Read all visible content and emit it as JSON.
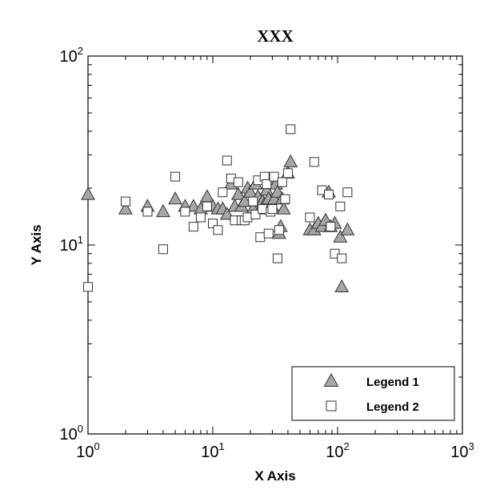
{
  "chart_data": {
    "type": "scatter",
    "title": "XXX",
    "xlabel": "X Axis",
    "ylabel": "Y Axis",
    "xscale": "log",
    "yscale": "log",
    "xlim": [
      1,
      1000
    ],
    "ylim": [
      1,
      100
    ],
    "x_ticks": [
      {
        "base": "10",
        "exp": "0"
      },
      {
        "base": "10",
        "exp": "1"
      },
      {
        "base": "10",
        "exp": "2"
      },
      {
        "base": "10",
        "exp": "3"
      }
    ],
    "y_ticks": [
      {
        "base": "10",
        "exp": "0"
      },
      {
        "base": "10",
        "exp": "1"
      },
      {
        "base": "10",
        "exp": "2"
      }
    ],
    "grid": false,
    "legend_position": "bottom-right",
    "series": [
      {
        "name": "Legend 1",
        "marker": "triangle",
        "color": "#a6a6a6",
        "points": [
          [
            1.0,
            18.5
          ],
          [
            2.0,
            15.5
          ],
          [
            3.0,
            16.0
          ],
          [
            4.0,
            15.0
          ],
          [
            5.0,
            17.5
          ],
          [
            6.0,
            16.0
          ],
          [
            7.0,
            16.0
          ],
          [
            8.0,
            15.5
          ],
          [
            9.0,
            18.0
          ],
          [
            10.0,
            16.0
          ],
          [
            11.0,
            15.5
          ],
          [
            12.0,
            15.5
          ],
          [
            13.0,
            14.5
          ],
          [
            14.0,
            21.0
          ],
          [
            15.0,
            16.0
          ],
          [
            16.0,
            18.5
          ],
          [
            17.0,
            16.0
          ],
          [
            18.0,
            17.0
          ],
          [
            19.0,
            20.0
          ],
          [
            20.0,
            19.0
          ],
          [
            21.0,
            15.5
          ],
          [
            22.0,
            21.0
          ],
          [
            23.0,
            18.0
          ],
          [
            24.0,
            15.5
          ],
          [
            25.0,
            17.0
          ],
          [
            26.0,
            16.5
          ],
          [
            27.0,
            19.5
          ],
          [
            28.0,
            17.5
          ],
          [
            29.0,
            22.0
          ],
          [
            30.0,
            16.0
          ],
          [
            31.0,
            17.5
          ],
          [
            32.0,
            21.0
          ],
          [
            33.0,
            19.0
          ],
          [
            34.0,
            11.5
          ],
          [
            35.0,
            12.5
          ],
          [
            36.0,
            17.5
          ],
          [
            37.0,
            15.5
          ],
          [
            40.0,
            24.0
          ],
          [
            42.0,
            27.5
          ],
          [
            60.0,
            12.0
          ],
          [
            65.0,
            12.0
          ],
          [
            70.0,
            13.0
          ],
          [
            75.0,
            12.5
          ],
          [
            80.0,
            13.5
          ],
          [
            85.0,
            19.0
          ],
          [
            88.0,
            12.5
          ],
          [
            95.0,
            13.0
          ],
          [
            105.0,
            11.0
          ],
          [
            108.0,
            6.0
          ],
          [
            120.0,
            12.0
          ]
        ]
      },
      {
        "name": "Legend 2",
        "marker": "square",
        "color": "#ffffff",
        "points": [
          [
            1.0,
            6.0
          ],
          [
            2.0,
            17.0
          ],
          [
            3.0,
            15.0
          ],
          [
            4.0,
            9.5
          ],
          [
            5.0,
            23.0
          ],
          [
            6.0,
            15.0
          ],
          [
            7.0,
            12.5
          ],
          [
            8.0,
            14.0
          ],
          [
            9.0,
            16.0
          ],
          [
            10.0,
            13.0
          ],
          [
            11.0,
            12.0
          ],
          [
            12.0,
            19.0
          ],
          [
            13.0,
            28.0
          ],
          [
            14.0,
            22.5
          ],
          [
            15.0,
            13.5
          ],
          [
            16.0,
            21.5
          ],
          [
            17.0,
            13.5
          ],
          [
            18.0,
            13.5
          ],
          [
            19.0,
            14.0
          ],
          [
            21.0,
            17.0
          ],
          [
            22.0,
            14.5
          ],
          [
            23.0,
            22.0
          ],
          [
            24.0,
            11.0
          ],
          [
            25.0,
            15.5
          ],
          [
            26.0,
            23.0
          ],
          [
            27.0,
            21.0
          ],
          [
            28.0,
            11.5
          ],
          [
            29.0,
            15.0
          ],
          [
            30.0,
            15.5
          ],
          [
            31.0,
            23.0
          ],
          [
            33.0,
            8.5
          ],
          [
            34.0,
            12.0
          ],
          [
            36.0,
            21.5
          ],
          [
            38.0,
            17.5
          ],
          [
            40.0,
            24.0
          ],
          [
            42.0,
            41.0
          ],
          [
            60.0,
            14.0
          ],
          [
            65.0,
            27.5
          ],
          [
            75.0,
            19.5
          ],
          [
            85.0,
            18.5
          ],
          [
            88.0,
            12.5
          ],
          [
            95.0,
            9.0
          ],
          [
            105.0,
            16.0
          ],
          [
            108.0,
            8.5
          ],
          [
            120.0,
            19.0
          ]
        ]
      }
    ]
  }
}
